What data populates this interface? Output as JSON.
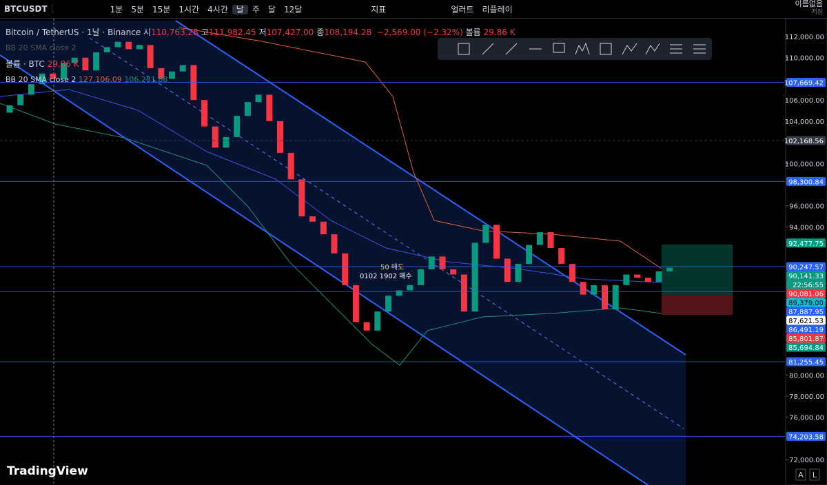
{
  "toolbar": {
    "symbol": "BTCUSDT",
    "intervals": [
      "1분",
      "5분",
      "15분",
      "1시간",
      "4시간",
      "날",
      "주",
      "달",
      "12달"
    ],
    "indicators": "지표",
    "alert": "얼러트",
    "replay": "리플레이",
    "layout_name": "이름없음",
    "save": "저장"
  },
  "legend": {
    "title": "Bitcoin / TetherUS · 1날 · Binance",
    "ohlc": [
      {
        "label": "시",
        "value": "110,763.28"
      },
      {
        "label": "고",
        "value": "111,982.45"
      },
      {
        "label": "저",
        "value": "107,427.00"
      },
      {
        "label": "종",
        "value": "108,194.28"
      }
    ],
    "change": "−2,569.00 (−2.32%)",
    "volume_label": "볼륨",
    "volume_value": "29.86 K",
    "faded_indicator": "BB 20 SMA close 2",
    "volume_indicator": "볼륨 · BTC",
    "volume_indicator_value": "29.86 K",
    "bb_indicator": "BB 20 SMA close 2",
    "bb_values": [
      "127,106.09",
      "106,281.88"
    ]
  },
  "annotations": [
    "50 매도",
    "0102 1902 매수"
  ],
  "logo": "TradingView",
  "axis_buttons": [
    "A",
    "L"
  ],
  "chart_data": {
    "type": "candlestick",
    "ylim": [
      69600,
      113500
    ],
    "yticks": [
      {
        "value": 112000,
        "label": "112,000.00"
      },
      {
        "value": 110000,
        "label": "110,000.00"
      },
      {
        "value": 106000,
        "label": "106,000.00"
      },
      {
        "value": 104000,
        "label": "104,000.00"
      },
      {
        "value": 100000,
        "label": "100,000.00"
      },
      {
        "value": 96000,
        "label": "96,000.00"
      },
      {
        "value": 94000,
        "label": "94,000.00"
      },
      {
        "value": 80000,
        "label": "80,000.00"
      },
      {
        "value": 78000,
        "label": "78,000.00"
      },
      {
        "value": 76000,
        "label": "76,000.00"
      },
      {
        "value": 72000,
        "label": "72,000.00"
      }
    ],
    "up_color": "#089981",
    "down_color": "#f23645",
    "open": [
      104800,
      105500,
      106500,
      107500,
      108500,
      108000,
      109500,
      110000,
      108800,
      110500,
      111000,
      111500,
      110800,
      111200,
      109000,
      108000,
      108700,
      109300,
      106000,
      103500,
      101500,
      102500,
      104500,
      105800,
      106500,
      104000,
      101000,
      98500,
      95000,
      94500,
      93300,
      91500,
      88500,
      85000,
      84200,
      86000,
      87500,
      88000,
      88500,
      90000,
      91200,
      90000,
      89500,
      86000,
      92500,
      94200,
      91000,
      88800,
      90500,
      92300,
      93500,
      92000,
      90500,
      88800,
      87600,
      88500,
      86200,
      88500,
      89500,
      89200,
      88800,
      89800
    ],
    "close": [
      105500,
      106500,
      107500,
      108500,
      108000,
      109500,
      110000,
      108800,
      110500,
      111000,
      111500,
      110800,
      111200,
      109000,
      108000,
      108700,
      109300,
      106000,
      103500,
      101500,
      102500,
      104500,
      105800,
      106500,
      104000,
      101000,
      98500,
      95000,
      94500,
      93300,
      91500,
      88500,
      85000,
      84200,
      86000,
      87500,
      88000,
      88500,
      90000,
      91200,
      90000,
      89500,
      86000,
      92500,
      94200,
      91000,
      88800,
      90500,
      92300,
      93500,
      92000,
      90500,
      88800,
      87600,
      88500,
      86200,
      88500,
      89500,
      89200,
      88800,
      89800,
      90141
    ],
    "price_badges": [
      {
        "value": 107669.42,
        "label": "107,669.42",
        "color": "#2962ff",
        "text_color": "#ffffff",
        "line": "solid"
      },
      {
        "value": 102168.56,
        "label": "102,168.56",
        "color": "#363a45",
        "text_color": "#ffffff",
        "line": "dashed"
      },
      {
        "value": 98300.84,
        "label": "98,300.84",
        "color": "#2962ff",
        "text_color": "#ffffff",
        "line": "solid"
      },
      {
        "value": 92477.75,
        "label": "92,477.75",
        "color": "#089981",
        "text_color": "#ffffff"
      },
      {
        "value": 90247.57,
        "label": "90,247.57",
        "color": "#2962ff",
        "text_color": "#ffffff",
        "line": "solid"
      },
      {
        "value": 90141.33,
        "label": "90,141.33",
        "color": "#089981",
        "text_color": "#ffffff",
        "countdown": "22:56:55"
      },
      {
        "value": 90081.06,
        "label": "90,081.06",
        "color": "#f23645",
        "text_color": "#ffffff"
      },
      {
        "value": 89379.0,
        "label": "89,379.00",
        "color": "#00bcd4",
        "text_color": "#000000"
      },
      {
        "value": 87887.95,
        "label": "87,887.95",
        "color": "#2962ff",
        "text_color": "#ffffff",
        "line": "solid"
      },
      {
        "value": 87621.53,
        "label": "87,621.53",
        "color": "#ffffff",
        "text_color": "#000000"
      },
      {
        "value": 86491.19,
        "label": "86,491.19",
        "color": "#2962ff",
        "text_color": "#ffffff"
      },
      {
        "value": 85801.87,
        "label": "85,801.87",
        "color": "#f23645",
        "text_color": "#ffffff"
      },
      {
        "value": 85694.84,
        "label": "85,694.84",
        "color": "#089981",
        "text_color": "#ffffff"
      },
      {
        "value": 81255.45,
        "label": "81,255.45",
        "color": "#2962ff",
        "text_color": "#ffffff",
        "line": "solid"
      },
      {
        "value": 74203.58,
        "label": "74,203.58",
        "color": "#2962ff",
        "text_color": "#ffffff",
        "line": "solid"
      }
    ]
  }
}
